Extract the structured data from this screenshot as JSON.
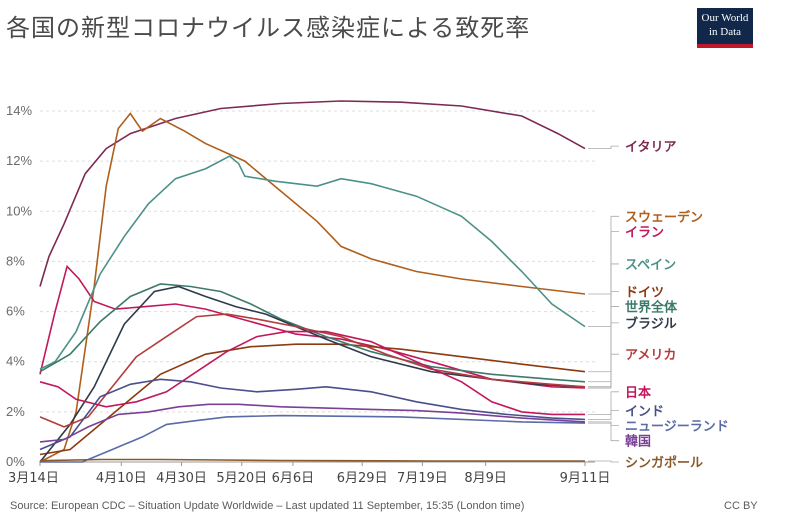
{
  "title": "各国の新型コロナウイルス感染症による致死率",
  "logo": {
    "line1": "Our World",
    "line2": "in Data"
  },
  "footer": {
    "source": "Source: European CDC – Situation Update Worldwide – Last updated 11 September, 15:35 (London time)",
    "license": "CC BY"
  },
  "chart_data": {
    "type": "line",
    "title": "各国の新型コロナウイルス感染症による致死率",
    "ylabel": "",
    "xlabel": "",
    "ylim": [
      0,
      14
    ],
    "y_ticks": [
      0,
      2,
      4,
      6,
      8,
      10,
      12,
      14
    ],
    "y_tick_labels": [
      "0%",
      "2%",
      "4%",
      "6%",
      "8%",
      "10%",
      "12%",
      "14%"
    ],
    "grid": "horizontal dashed",
    "x_range_days": [
      0,
      181
    ],
    "x_ticks": [
      {
        "day": 0,
        "label": "3月14日"
      },
      {
        "day": 27,
        "label": "4月10日"
      },
      {
        "day": 47,
        "label": "4月30日"
      },
      {
        "day": 67,
        "label": "5月20日"
      },
      {
        "day": 84,
        "label": "6月6日"
      },
      {
        "day": 107,
        "label": "6月29日"
      },
      {
        "day": 127,
        "label": "7月19日"
      },
      {
        "day": 148,
        "label": "8月9日"
      },
      {
        "day": 181,
        "label": "9月11日"
      }
    ],
    "series": [
      {
        "name": "イタリア",
        "color": "#7d2a52",
        "label_y": 12.6,
        "points": [
          [
            0,
            7
          ],
          [
            3,
            8.2
          ],
          [
            8,
            9.5
          ],
          [
            15,
            11.5
          ],
          [
            22,
            12.5
          ],
          [
            30,
            13.1
          ],
          [
            45,
            13.7
          ],
          [
            60,
            14.1
          ],
          [
            80,
            14.3
          ],
          [
            100,
            14.4
          ],
          [
            120,
            14.35
          ],
          [
            140,
            14.2
          ],
          [
            160,
            13.8
          ],
          [
            172,
            13.1
          ],
          [
            181,
            12.5
          ]
        ]
      },
      {
        "name": "スウェーデン",
        "color": "#b05e1c",
        "label_y": 9.8,
        "points": [
          [
            0,
            0
          ],
          [
            8,
            0.5
          ],
          [
            12,
            2
          ],
          [
            18,
            7
          ],
          [
            22,
            11
          ],
          [
            26,
            13.3
          ],
          [
            30,
            13.9
          ],
          [
            34,
            13.2
          ],
          [
            40,
            13.7
          ],
          [
            48,
            13.2
          ],
          [
            55,
            12.7
          ],
          [
            68,
            12
          ],
          [
            80,
            10.8
          ],
          [
            92,
            9.6
          ],
          [
            100,
            8.6
          ],
          [
            110,
            8.1
          ],
          [
            125,
            7.6
          ],
          [
            140,
            7.3
          ],
          [
            160,
            7.0
          ],
          [
            181,
            6.7
          ]
        ]
      },
      {
        "name": "イラン",
        "color": "#c2185b",
        "label_y": 9.2,
        "points": [
          [
            0,
            3.5
          ],
          [
            5,
            6
          ],
          [
            9,
            7.8
          ],
          [
            13,
            7.3
          ],
          [
            18,
            6.4
          ],
          [
            25,
            6.1
          ],
          [
            35,
            6.2
          ],
          [
            45,
            6.3
          ],
          [
            55,
            6.1
          ],
          [
            70,
            5.6
          ],
          [
            85,
            5.1
          ],
          [
            100,
            4.9
          ],
          [
            115,
            4.5
          ],
          [
            130,
            4.0
          ],
          [
            150,
            3.3
          ],
          [
            170,
            3.0
          ],
          [
            181,
            2.95
          ]
        ]
      },
      {
        "name": "スペイン",
        "color": "#4c9188",
        "label_y": 7.9,
        "points": [
          [
            0,
            3.7
          ],
          [
            5,
            4.0
          ],
          [
            12,
            5.2
          ],
          [
            20,
            7.5
          ],
          [
            28,
            9.0
          ],
          [
            36,
            10.3
          ],
          [
            45,
            11.3
          ],
          [
            55,
            11.7
          ],
          [
            63,
            12.2
          ],
          [
            66,
            11.9
          ],
          [
            68,
            11.4
          ],
          [
            78,
            11.2
          ],
          [
            92,
            11.0
          ],
          [
            100,
            11.3
          ],
          [
            110,
            11.1
          ],
          [
            125,
            10.6
          ],
          [
            140,
            9.8
          ],
          [
            150,
            8.8
          ],
          [
            160,
            7.6
          ],
          [
            170,
            6.3
          ],
          [
            181,
            5.4
          ]
        ]
      },
      {
        "name": "ドイツ",
        "color": "#8c3a10",
        "label_y": 6.8,
        "points": [
          [
            0,
            0.3
          ],
          [
            10,
            0.5
          ],
          [
            20,
            1.5
          ],
          [
            30,
            2.5
          ],
          [
            40,
            3.5
          ],
          [
            55,
            4.3
          ],
          [
            70,
            4.6
          ],
          [
            85,
            4.7
          ],
          [
            100,
            4.7
          ],
          [
            120,
            4.5
          ],
          [
            140,
            4.2
          ],
          [
            160,
            3.9
          ],
          [
            181,
            3.6
          ]
        ]
      },
      {
        "name": "世界全体",
        "color": "#3d7a6b",
        "label_y": 6.2,
        "points": [
          [
            0,
            3.6
          ],
          [
            10,
            4.3
          ],
          [
            20,
            5.6
          ],
          [
            30,
            6.6
          ],
          [
            40,
            7.1
          ],
          [
            50,
            7.0
          ],
          [
            60,
            6.8
          ],
          [
            70,
            6.3
          ],
          [
            80,
            5.7
          ],
          [
            95,
            5.0
          ],
          [
            110,
            4.4
          ],
          [
            130,
            3.8
          ],
          [
            150,
            3.5
          ],
          [
            170,
            3.3
          ],
          [
            181,
            3.2
          ]
        ]
      },
      {
        "name": "ブラジル",
        "color": "#2f3a4a",
        "label_y": 5.55,
        "points": [
          [
            0,
            0
          ],
          [
            10,
            1.5
          ],
          [
            18,
            3.0
          ],
          [
            28,
            5.5
          ],
          [
            38,
            6.8
          ],
          [
            46,
            7.0
          ],
          [
            55,
            6.6
          ],
          [
            65,
            6.2
          ],
          [
            75,
            5.9
          ],
          [
            85,
            5.4
          ],
          [
            95,
            4.9
          ],
          [
            110,
            4.2
          ],
          [
            130,
            3.6
          ],
          [
            150,
            3.3
          ],
          [
            165,
            3.1
          ],
          [
            181,
            3.0
          ]
        ]
      },
      {
        "name": "アメリカ",
        "color": "#b43c3c",
        "label_y": 4.3,
        "points": [
          [
            0,
            1.8
          ],
          [
            8,
            1.4
          ],
          [
            16,
            1.8
          ],
          [
            24,
            3.0
          ],
          [
            32,
            4.2
          ],
          [
            42,
            5.0
          ],
          [
            52,
            5.8
          ],
          [
            62,
            5.9
          ],
          [
            72,
            5.7
          ],
          [
            85,
            5.4
          ],
          [
            100,
            5.0
          ],
          [
            115,
            4.3
          ],
          [
            130,
            3.7
          ],
          [
            150,
            3.3
          ],
          [
            170,
            3.1
          ],
          [
            181,
            3.0
          ]
        ]
      },
      {
        "name": "日本",
        "color": "#c2185b",
        "label_y": 2.8,
        "points": [
          [
            0,
            3.2
          ],
          [
            6,
            3.0
          ],
          [
            12,
            2.5
          ],
          [
            22,
            2.2
          ],
          [
            32,
            2.4
          ],
          [
            42,
            2.8
          ],
          [
            52,
            3.6
          ],
          [
            62,
            4.4
          ],
          [
            72,
            5.0
          ],
          [
            82,
            5.2
          ],
          [
            95,
            5.2
          ],
          [
            110,
            4.8
          ],
          [
            125,
            4.0
          ],
          [
            140,
            3.2
          ],
          [
            150,
            2.4
          ],
          [
            160,
            2.0
          ],
          [
            170,
            1.9
          ],
          [
            181,
            1.9
          ]
        ]
      },
      {
        "name": "インド",
        "color": "#4a4f8c",
        "label_y": 2.05,
        "points": [
          [
            0,
            0.5
          ],
          [
            10,
            1.0
          ],
          [
            20,
            2.6
          ],
          [
            30,
            3.1
          ],
          [
            40,
            3.3
          ],
          [
            50,
            3.2
          ],
          [
            60,
            2.95
          ],
          [
            72,
            2.8
          ],
          [
            85,
            2.9
          ],
          [
            95,
            3.0
          ],
          [
            110,
            2.8
          ],
          [
            125,
            2.4
          ],
          [
            140,
            2.1
          ],
          [
            155,
            1.9
          ],
          [
            170,
            1.75
          ],
          [
            181,
            1.7
          ]
        ]
      },
      {
        "name": "ニュージーランド",
        "color": "#5b6ba8",
        "label_y": 1.45,
        "points": [
          [
            0,
            0
          ],
          [
            14,
            0
          ],
          [
            24,
            0.5
          ],
          [
            34,
            1.0
          ],
          [
            42,
            1.5
          ],
          [
            52,
            1.65
          ],
          [
            62,
            1.8
          ],
          [
            80,
            1.85
          ],
          [
            120,
            1.8
          ],
          [
            160,
            1.6
          ],
          [
            181,
            1.55
          ]
        ]
      },
      {
        "name": "韓国",
        "color": "#7a3f96",
        "label_y": 0.85,
        "points": [
          [
            0,
            0.8
          ],
          [
            8,
            0.9
          ],
          [
            16,
            1.4
          ],
          [
            26,
            1.9
          ],
          [
            36,
            2.0
          ],
          [
            46,
            2.2
          ],
          [
            56,
            2.3
          ],
          [
            66,
            2.3
          ],
          [
            80,
            2.2
          ],
          [
            95,
            2.15
          ],
          [
            110,
            2.1
          ],
          [
            125,
            2.05
          ],
          [
            140,
            1.95
          ],
          [
            160,
            1.75
          ],
          [
            181,
            1.6
          ]
        ]
      },
      {
        "name": "シンガポール",
        "color": "#8a5a2a",
        "label_y": 0.0,
        "points": [
          [
            0,
            0.05
          ],
          [
            20,
            0.1
          ],
          [
            40,
            0.1
          ],
          [
            60,
            0.08
          ],
          [
            80,
            0.06
          ],
          [
            100,
            0.05
          ],
          [
            130,
            0.04
          ],
          [
            160,
            0.04
          ],
          [
            181,
            0.04
          ]
        ]
      }
    ]
  }
}
